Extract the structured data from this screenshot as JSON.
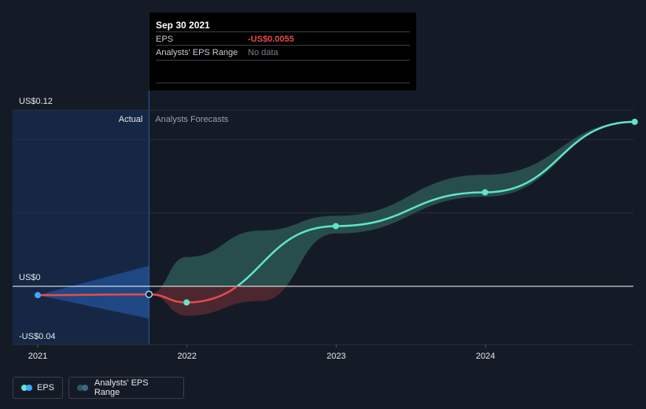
{
  "chart_data": {
    "type": "line",
    "x_ticks": [
      "2021",
      "2022",
      "2023",
      "2024"
    ],
    "y_labels": {
      "top": "US$0.12",
      "zero": "US$0",
      "bottom": "-US$0.04"
    },
    "ylim": [
      -0.04,
      0.12
    ],
    "section_labels": {
      "actual": "Actual",
      "forecast": "Analysts Forecasts"
    },
    "series": [
      {
        "name": "EPS",
        "points": [
          {
            "date": "2021-01-01",
            "value": -0.006
          },
          {
            "date": "2021-09-30",
            "value": -0.0055
          },
          {
            "date": "2021-12-31",
            "value": -0.011
          },
          {
            "date": "2022-12-31",
            "value": 0.041
          },
          {
            "date": "2023-12-31",
            "value": 0.064
          },
          {
            "date": "2024-12-31",
            "value": 0.112
          }
        ]
      }
    ],
    "range": {
      "name": "Analysts' EPS Range",
      "upper": [
        {
          "date": "2021-09-30",
          "value": -0.0055
        },
        {
          "date": "2022-01-01",
          "value": 0.02
        },
        {
          "date": "2022-06-30",
          "value": 0.038
        },
        {
          "date": "2022-12-31",
          "value": 0.048
        },
        {
          "date": "2023-12-31",
          "value": 0.076
        },
        {
          "date": "2024-12-31",
          "value": 0.112
        }
      ],
      "lower": [
        {
          "date": "2021-09-30",
          "value": -0.0055
        },
        {
          "date": "2022-01-01",
          "value": -0.02
        },
        {
          "date": "2022-06-30",
          "value": -0.01
        },
        {
          "date": "2022-12-31",
          "value": 0.036
        },
        {
          "date": "2023-12-31",
          "value": 0.061
        },
        {
          "date": "2024-12-31",
          "value": 0.112
        }
      ]
    },
    "past_range": {
      "upper": [
        {
          "date": "2021-01-01",
          "value": -0.006
        },
        {
          "date": "2021-09-30",
          "value": 0.014
        }
      ],
      "lower": [
        {
          "date": "2021-01-01",
          "value": -0.006
        },
        {
          "date": "2021-09-30",
          "value": -0.022
        }
      ]
    },
    "grid": true,
    "legend_position": "bottom-left",
    "colors": {
      "positive": "#5ee6c8",
      "negative": "#e64b4b",
      "actual_bg": "#15294a",
      "past_band": "#2a6fd1",
      "band_pos": "#2d5a57",
      "band_neg": "#5a2a32",
      "grid": "#2a303a",
      "zero_line": "#ffffff"
    }
  },
  "tooltip": {
    "date": "Sep 30 2021",
    "eps_label": "EPS",
    "eps_value": "-US$0.0055",
    "range_label": "Analysts' EPS Range",
    "range_value": "No data"
  },
  "legend": {
    "eps_label": "EPS",
    "range_label": "Analysts' EPS Range",
    "eps_colors": [
      "#5ee6c8",
      "#3ea8ff"
    ],
    "range_colors": [
      "#2d5a57",
      "#3d6a8a"
    ]
  }
}
